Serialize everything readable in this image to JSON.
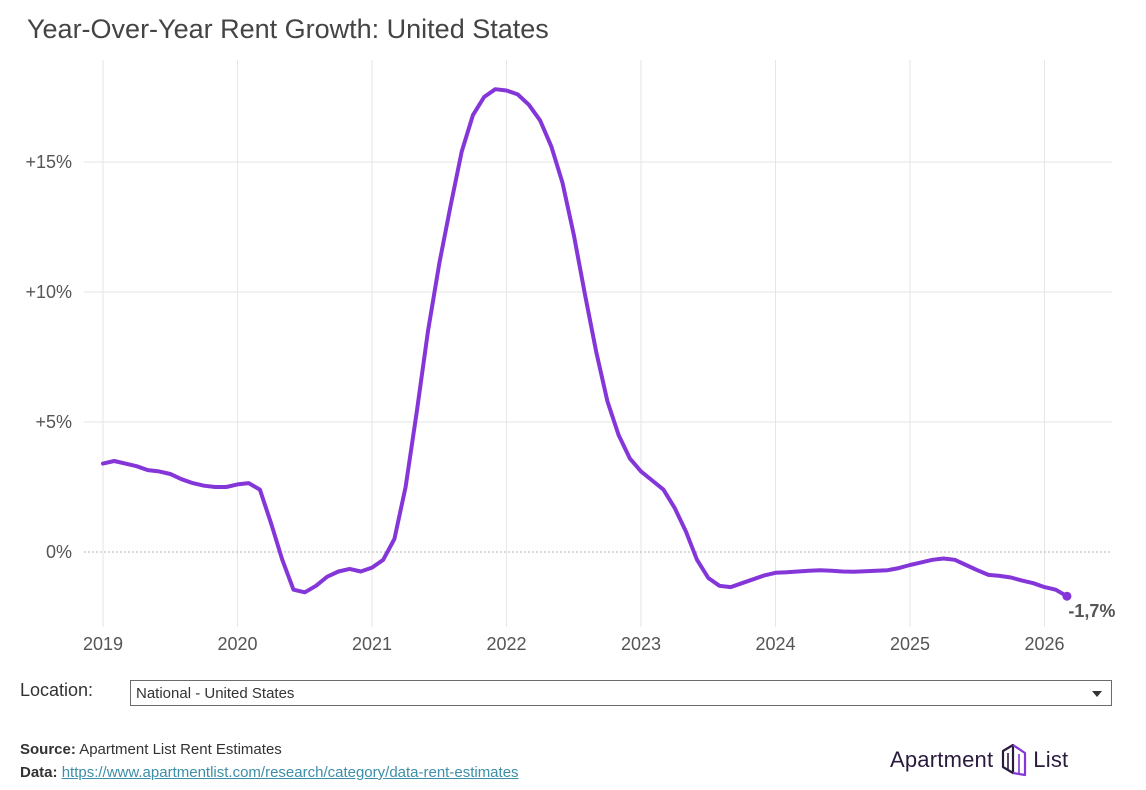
{
  "title": "Year-Over-Year Rent Growth: United States",
  "colors": {
    "series": "#8436d9",
    "grid": "#e6e6e6",
    "zero_line": "#b5b5b5",
    "axis_text": "#555555",
    "link": "#3d8ea8",
    "brand": "#2a1b3d"
  },
  "chart_data": {
    "type": "line",
    "title": "Year-Over-Year Rent Growth: United States",
    "xlabel": "",
    "ylabel": "",
    "x_ticks": [
      "2019",
      "2020",
      "2021",
      "2022",
      "2023",
      "2024",
      "2025",
      "2026"
    ],
    "y_ticks": [
      {
        "value": 0,
        "label": "0%"
      },
      {
        "value": 5,
        "label": "+5%"
      },
      {
        "value": 10,
        "label": "+10%"
      },
      {
        "value": 15,
        "label": "+15%"
      }
    ],
    "xlim": [
      "2018-11",
      "2026-07"
    ],
    "ylim": [
      -2.8,
      19.5
    ],
    "grid": true,
    "legend": "none",
    "end_label": "-1,7%",
    "series": [
      {
        "x": [
          "2019-01",
          "2019-02",
          "2019-03",
          "2019-04",
          "2019-05",
          "2019-06",
          "2019-07",
          "2019-08",
          "2019-09",
          "2019-10",
          "2019-11",
          "2019-12",
          "2020-01",
          "2020-02",
          "2020-03",
          "2020-04",
          "2020-05",
          "2020-06",
          "2020-07",
          "2020-08",
          "2020-09",
          "2020-10",
          "2020-11",
          "2020-12",
          "2021-01",
          "2021-02",
          "2021-03",
          "2021-04",
          "2021-05",
          "2021-06",
          "2021-07",
          "2021-08",
          "2021-09",
          "2021-10",
          "2021-11",
          "2021-12",
          "2022-01",
          "2022-02",
          "2022-03",
          "2022-04",
          "2022-05",
          "2022-06",
          "2022-07",
          "2022-08",
          "2022-09",
          "2022-10",
          "2022-11",
          "2022-12",
          "2023-01",
          "2023-02",
          "2023-03",
          "2023-04",
          "2023-05",
          "2023-06",
          "2023-07",
          "2023-08",
          "2023-09",
          "2023-10",
          "2023-11",
          "2023-12",
          "2024-01",
          "2024-02",
          "2024-03",
          "2024-04",
          "2024-05",
          "2024-06",
          "2024-07",
          "2024-08",
          "2024-09",
          "2024-10",
          "2024-11",
          "2024-12",
          "2025-01",
          "2025-02",
          "2025-03",
          "2025-04",
          "2025-05",
          "2025-06",
          "2025-07",
          "2025-08",
          "2025-09",
          "2025-10",
          "2025-11",
          "2025-12",
          "2026-01",
          "2026-02",
          "2026-03"
        ],
        "y": [
          3.4,
          3.5,
          3.4,
          3.3,
          3.15,
          3.1,
          3.0,
          2.8,
          2.65,
          2.55,
          2.5,
          2.5,
          2.6,
          2.65,
          2.4,
          1.1,
          -0.3,
          -1.45,
          -1.55,
          -1.3,
          -0.95,
          -0.75,
          -0.65,
          -0.75,
          -0.6,
          -0.3,
          0.5,
          2.5,
          5.4,
          8.5,
          11.1,
          13.3,
          15.4,
          16.8,
          17.5,
          17.8,
          17.75,
          17.6,
          17.2,
          16.6,
          15.6,
          14.2,
          12.2,
          9.9,
          7.7,
          5.8,
          4.5,
          3.6,
          3.1,
          2.75,
          2.4,
          1.7,
          0.8,
          -0.3,
          -1.0,
          -1.3,
          -1.35,
          -1.2,
          -1.05,
          -0.9,
          -0.8,
          -0.78,
          -0.75,
          -0.72,
          -0.7,
          -0.72,
          -0.75,
          -0.76,
          -0.74,
          -0.72,
          -0.7,
          -0.62,
          -0.5,
          -0.4,
          -0.3,
          -0.25,
          -0.3,
          -0.5,
          -0.7,
          -0.88,
          -0.92,
          -0.98,
          -1.1,
          -1.2,
          -1.35,
          -1.45,
          -1.7
        ]
      }
    ]
  },
  "controls": {
    "location_label": "Location:",
    "location_value": "National - United States"
  },
  "footer": {
    "source_label": "Source:",
    "source_text": "Apartment List Rent Estimates",
    "data_label": "Data:",
    "data_link": "https://www.apartmentlist.com/research/category/data-rent-estimates"
  },
  "brand": {
    "word_left": "Apartment",
    "word_right": "List",
    "logo_icon": "apartment-list-logo-icon"
  }
}
